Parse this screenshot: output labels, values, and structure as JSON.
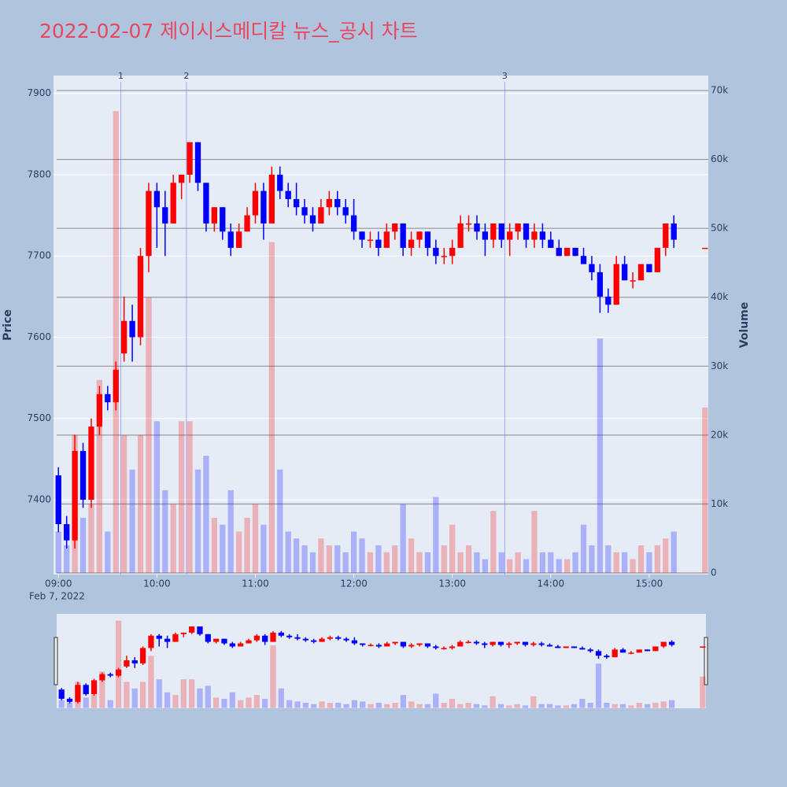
{
  "chart_data": {
    "type": "candlestick",
    "title": "2022-02-07 제이시스메디칼 뉴스_공시 차트",
    "ylabel": "Price",
    "y2label": "Volume",
    "x": [
      "09:00",
      "09:05",
      "09:10",
      "09:15",
      "09:20",
      "09:25",
      "09:30",
      "09:35",
      "09:40",
      "09:45",
      "09:50",
      "09:55",
      "10:00",
      "10:05",
      "10:10",
      "10:15",
      "10:20",
      "10:25",
      "10:30",
      "10:35",
      "10:40",
      "10:45",
      "10:50",
      "10:55",
      "11:00",
      "11:05",
      "11:10",
      "11:15",
      "11:20",
      "11:25",
      "11:30",
      "11:35",
      "11:40",
      "11:45",
      "11:50",
      "11:55",
      "12:00",
      "12:05",
      "12:10",
      "12:15",
      "12:20",
      "12:25",
      "12:30",
      "12:35",
      "12:40",
      "12:45",
      "12:50",
      "12:55",
      "13:00",
      "13:05",
      "13:10",
      "13:15",
      "13:20",
      "13:25",
      "13:30",
      "13:35",
      "13:40",
      "13:45",
      "13:50",
      "13:55",
      "14:00",
      "14:05",
      "14:10",
      "14:15",
      "14:20",
      "14:25",
      "14:30",
      "14:35",
      "14:40",
      "14:45",
      "14:50",
      "14:55",
      "15:00",
      "15:05",
      "15:10",
      "15:15",
      "15:34"
    ],
    "open": [
      7430,
      7370,
      7350,
      7460,
      7400,
      7490,
      7530,
      7520,
      7580,
      7620,
      7600,
      7700,
      7780,
      7760,
      7740,
      7790,
      7800,
      7840,
      7790,
      7740,
      7760,
      7730,
      7710,
      7730,
      7750,
      7780,
      7740,
      7800,
      7780,
      7770,
      7760,
      7750,
      7740,
      7760,
      7770,
      7760,
      7750,
      7730,
      7720,
      7720,
      7710,
      7730,
      7740,
      7710,
      7720,
      7730,
      7710,
      7700,
      7700,
      7710,
      7740,
      7740,
      7730,
      7720,
      7740,
      7720,
      7730,
      7740,
      7720,
      7730,
      7720,
      7710,
      7700,
      7710,
      7700,
      7690,
      7680,
      7650,
      7640,
      7690,
      7670,
      7670,
      7690,
      7680,
      7710,
      7740,
      7710
    ],
    "high": [
      7440,
      7380,
      7480,
      7470,
      7500,
      7540,
      7540,
      7570,
      7650,
      7640,
      7710,
      7790,
      7790,
      7780,
      7800,
      7800,
      7840,
      7840,
      7790,
      7760,
      7760,
      7740,
      7740,
      7760,
      7790,
      7790,
      7810,
      7810,
      7790,
      7790,
      7770,
      7760,
      7770,
      7780,
      7780,
      7770,
      7770,
      7730,
      7730,
      7730,
      7740,
      7740,
      7740,
      7730,
      7730,
      7730,
      7720,
      7710,
      7720,
      7750,
      7750,
      7750,
      7740,
      7740,
      7740,
      7740,
      7740,
      7740,
      7740,
      7740,
      7730,
      7720,
      7710,
      7710,
      7710,
      7700,
      7690,
      7660,
      7700,
      7700,
      7680,
      7690,
      7690,
      7710,
      7740,
      7750,
      7710
    ],
    "low": [
      7360,
      7340,
      7340,
      7390,
      7390,
      7480,
      7510,
      7510,
      7570,
      7570,
      7590,
      7680,
      7710,
      7700,
      7740,
      7770,
      7790,
      7780,
      7730,
      7730,
      7720,
      7700,
      7710,
      7730,
      7740,
      7720,
      7740,
      7770,
      7760,
      7750,
      7740,
      7730,
      7740,
      7750,
      7750,
      7740,
      7720,
      7710,
      7710,
      7700,
      7710,
      7720,
      7700,
      7700,
      7710,
      7700,
      7690,
      7690,
      7690,
      7710,
      7730,
      7720,
      7700,
      7710,
      7710,
      7700,
      7720,
      7710,
      7710,
      7710,
      7710,
      7700,
      7700,
      7700,
      7690,
      7670,
      7630,
      7630,
      7640,
      7670,
      7660,
      7670,
      7680,
      7680,
      7700,
      7710,
      7710
    ],
    "close": [
      7370,
      7350,
      7460,
      7400,
      7490,
      7530,
      7520,
      7560,
      7620,
      7600,
      7700,
      7780,
      7760,
      7740,
      7790,
      7800,
      7840,
      7790,
      7740,
      7760,
      7730,
      7710,
      7730,
      7750,
      7780,
      7740,
      7800,
      7780,
      7770,
      7760,
      7750,
      7740,
      7760,
      7770,
      7760,
      7750,
      7730,
      7720,
      7720,
      7710,
      7730,
      7740,
      7710,
      7720,
      7730,
      7710,
      7700,
      7700,
      7710,
      7740,
      7740,
      7730,
      7720,
      7740,
      7720,
      7730,
      7740,
      7720,
      7730,
      7720,
      7710,
      7700,
      7710,
      7700,
      7690,
      7680,
      7650,
      7640,
      7690,
      7670,
      7670,
      7690,
      7680,
      7710,
      7740,
      7720,
      7710
    ],
    "volume": [
      6000,
      4000,
      20000,
      8000,
      10000,
      28000,
      6000,
      67000,
      20000,
      15000,
      20000,
      40000,
      22000,
      12000,
      10000,
      22000,
      22000,
      15000,
      17000,
      8000,
      7000,
      12000,
      6000,
      8000,
      10000,
      7000,
      48000,
      15000,
      6000,
      5000,
      4000,
      3000,
      5000,
      4000,
      4000,
      3000,
      6000,
      5000,
      3000,
      4000,
      3000,
      4000,
      10000,
      5000,
      3000,
      3000,
      11000,
      4000,
      7000,
      3000,
      4000,
      3000,
      2000,
      9000,
      3000,
      2000,
      3000,
      2000,
      9000,
      3000,
      3000,
      2000,
      2000,
      3000,
      7000,
      4000,
      34000,
      4000,
      3000,
      3000,
      2000,
      4000,
      3000,
      4000,
      5000,
      6000,
      24000
    ],
    "increasing_color": "#ff0000",
    "decreasing_color": "#0000ff",
    "xlim": [
      "08:57",
      "15:36"
    ],
    "xticks": [
      "09:00",
      "10:00",
      "11:00",
      "12:00",
      "13:00",
      "14:00",
      "15:00"
    ],
    "x_sublabel": "Feb 7, 2022",
    "ylim": [
      7308,
      7922
    ],
    "yticks": [
      7400,
      7500,
      7600,
      7700,
      7800,
      7900
    ],
    "y2lim": [
      -230,
      72170
    ],
    "y2ticks": [
      0,
      {
        "value": 10000,
        "label": "10k"
      },
      {
        "value": 20000,
        "label": "20k"
      },
      {
        "value": 30000,
        "label": "30k"
      },
      {
        "value": 40000,
        "label": "40k"
      },
      {
        "value": 50000,
        "label": "50k"
      },
      {
        "value": 60000,
        "label": "60k"
      },
      {
        "value": 70000,
        "label": "70k"
      }
    ],
    "annotations": [
      {
        "x": "09:38",
        "text": "1"
      },
      {
        "x": "10:18",
        "text": "2"
      },
      {
        "x": "13:32",
        "text": "3"
      }
    ]
  }
}
